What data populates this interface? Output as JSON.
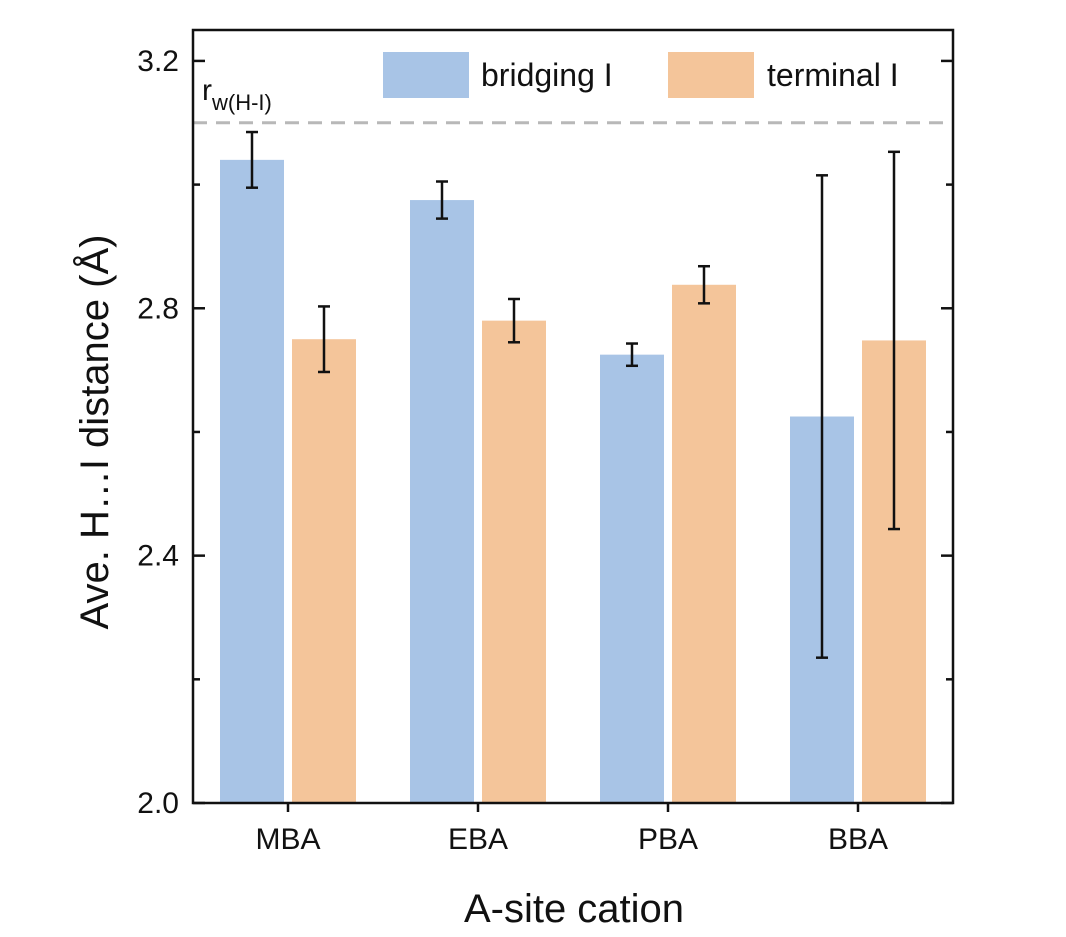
{
  "chart_data": {
    "type": "bar",
    "title": "",
    "xlabel": "A-site cation",
    "ylabel": "Ave. H…I distance (Å)",
    "categories": [
      "MBA",
      "EBA",
      "PBA",
      "BBA"
    ],
    "ylim": [
      2.0,
      3.25
    ],
    "yticks": [
      "2.0",
      "2.4",
      "2.8",
      "3.2"
    ],
    "series": [
      {
        "name": "bridging I",
        "color": "#a8c4e6",
        "values": [
          3.04,
          2.975,
          2.725,
          2.625
        ],
        "errors": [
          0.045,
          0.03,
          0.018,
          0.39
        ]
      },
      {
        "name": "terminal I",
        "color": "#f4c59a",
        "values": [
          2.75,
          2.78,
          2.838,
          2.748
        ],
        "errors": [
          0.053,
          0.035,
          0.03,
          0.305
        ]
      }
    ],
    "reference_line": {
      "value": 3.1,
      "label_main": "r",
      "label_sub": "w(H-I)",
      "color": "#b8b8b8",
      "style": "dashed"
    },
    "legend_position": "top-right"
  }
}
